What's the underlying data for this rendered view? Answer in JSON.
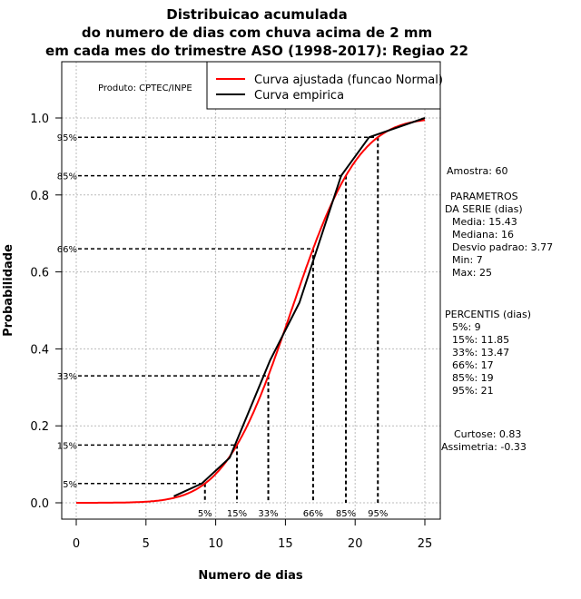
{
  "chart_data": {
    "type": "line",
    "title": [
      "Distribuicao acumulada",
      "do numero de dias com chuva acima de 2 mm",
      "em cada mes do trimestre ASO (1998-2017): Regiao 22"
    ],
    "xlabel": "Numero de dias",
    "ylabel": "Probabilidade",
    "xlim": [
      0,
      25
    ],
    "ylim": [
      0,
      1
    ],
    "xticks": [
      0,
      5,
      10,
      15,
      20,
      25
    ],
    "yticks": [
      "0.0",
      "0.2",
      "0.4",
      "0.6",
      "0.8",
      "1.0"
    ],
    "grid": true,
    "legend_position": "top-right",
    "credit": "Produto: CPTEC/INPE",
    "series": [
      {
        "name": "Curva ajustada (funcao Normal)",
        "color": "#ff0000",
        "distribution": "normal",
        "mean": 15.43,
        "sd": 3.77,
        "x_range": [
          0,
          25
        ]
      },
      {
        "name": "Curva empirica",
        "color": "#000000",
        "x": [
          7,
          9,
          11,
          13.9,
          16,
          19,
          21,
          25
        ],
        "y": [
          0.017,
          0.05,
          0.117,
          0.37,
          0.52,
          0.85,
          0.95,
          1.0
        ]
      }
    ],
    "percentile_marks": [
      {
        "label": "5%",
        "p": 0.05
      },
      {
        "label": "15%",
        "p": 0.15
      },
      {
        "label": "33%",
        "p": 0.33
      },
      {
        "label": "66%",
        "p": 0.66
      },
      {
        "label": "85%",
        "p": 0.85
      },
      {
        "label": "95%",
        "p": 0.95
      }
    ]
  },
  "side": {
    "amostra": "Amostra: 60",
    "param_title1": "PARAMETROS",
    "param_title2": "DA SERIE (dias)",
    "media": "Media: 15.43",
    "mediana": "Mediana: 16",
    "desvio": "Desvio padrao: 3.77",
    "min": "Min: 7",
    "max": "Max: 25",
    "perc_title": "PERCENTIS (dias)",
    "p5": "5%: 9",
    "p15": "15%: 11.85",
    "p33": "33%: 13.47",
    "p66": "66%: 17",
    "p85": "85%: 19",
    "p95": "95%: 21",
    "curtose": "Curtose: 0.83",
    "assimetria": "Assimetria: -0.33"
  }
}
